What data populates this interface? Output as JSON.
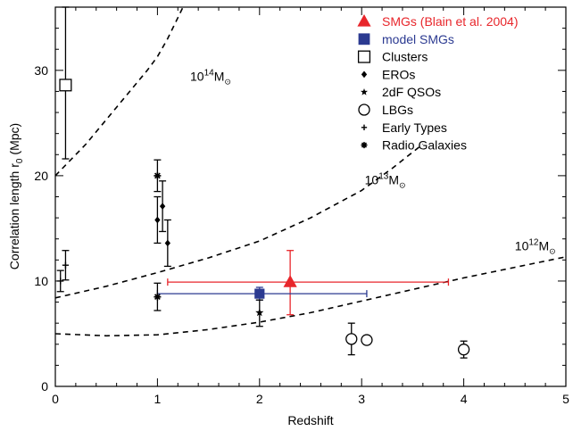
{
  "chart_data": {
    "type": "scatter",
    "xlabel": "Redshift",
    "ylabel": "Correlation length r",
    "ylabel_sub": "0",
    "ylabel_unit": "(Mpc)",
    "xlim": [
      0,
      5
    ],
    "ylim": [
      0,
      36
    ],
    "x_ticks": [
      0,
      1,
      2,
      3,
      4,
      5
    ],
    "y_ticks": [
      0,
      10,
      20,
      30
    ],
    "x_tick_labels": [
      "0",
      "1",
      "2",
      "3",
      "4",
      "5"
    ],
    "y_tick_labels": [
      "0",
      "10",
      "20",
      "30"
    ],
    "grid": false,
    "legend_position": "top-right",
    "legend": [
      {
        "label": "SMGs (Blain et al. 2004)",
        "marker": "triangle",
        "color": "#e8262b"
      },
      {
        "label": "model SMGs",
        "marker": "square",
        "color": "#2b3a91"
      },
      {
        "label": "Clusters",
        "marker": "open-square",
        "color": "#000000"
      },
      {
        "label": "EROs",
        "marker": "diamond",
        "color": "#000000"
      },
      {
        "label": "2dF QSOs",
        "marker": "star",
        "color": "#000000"
      },
      {
        "label": "LBGs",
        "marker": "circle",
        "color": "#000000"
      },
      {
        "label": "Early Types",
        "marker": "plus",
        "color": "#000000"
      },
      {
        "label": "Radio Galaxies",
        "marker": "asterisk",
        "color": "#000000"
      }
    ],
    "mass_curves": [
      {
        "label": "10",
        "sup": "14",
        "unit": "M",
        "sub": "⊙",
        "points": [
          [
            0.0,
            20.0
          ],
          [
            0.3,
            23.0
          ],
          [
            0.6,
            26.5
          ],
          [
            0.9,
            30.0
          ],
          [
            1.0,
            31.3
          ],
          [
            1.1,
            33.0
          ],
          [
            1.2,
            35.0
          ],
          [
            1.25,
            36.0
          ]
        ]
      },
      {
        "label": "10",
        "sup": "13",
        "unit": "M",
        "sub": "⊙",
        "points": [
          [
            0.0,
            8.4
          ],
          [
            0.5,
            9.5
          ],
          [
            1.0,
            10.8
          ],
          [
            1.5,
            12.2
          ],
          [
            2.0,
            13.8
          ],
          [
            2.5,
            16.0
          ],
          [
            3.0,
            18.6
          ],
          [
            3.3,
            20.7
          ],
          [
            3.6,
            23.0
          ]
        ]
      },
      {
        "label": "10",
        "sup": "12",
        "unit": "M",
        "sub": "⊙",
        "points": [
          [
            0.0,
            5.0
          ],
          [
            0.5,
            4.8
          ],
          [
            1.0,
            4.9
          ],
          [
            1.5,
            5.4
          ],
          [
            2.0,
            6.1
          ],
          [
            2.5,
            7.0
          ],
          [
            3.0,
            8.1
          ],
          [
            3.5,
            9.2
          ],
          [
            4.0,
            10.3
          ],
          [
            4.5,
            11.3
          ],
          [
            5.0,
            12.3
          ]
        ]
      }
    ],
    "series": [
      {
        "name": "SMGs (Blain et al. 2004)",
        "marker": "triangle",
        "color": "#e8262b",
        "points": [
          {
            "x": 2.3,
            "y": 9.9,
            "xerr": [
              1.2,
              1.55
            ],
            "yerr": [
              3.1,
              3.0
            ]
          }
        ]
      },
      {
        "name": "model SMGs",
        "marker": "square",
        "color": "#2b3a91",
        "points": [
          {
            "x": 2.0,
            "y": 8.8,
            "xerr": [
              1.0,
              1.05
            ],
            "yerr": [
              0.6,
              0.6
            ]
          }
        ]
      },
      {
        "name": "Clusters",
        "marker": "open-square",
        "color": "#000000",
        "points": [
          {
            "x": 0.1,
            "y": 28.6,
            "yerr": [
              7.0,
              7.4
            ]
          }
        ]
      },
      {
        "name": "EROs",
        "marker": "diamond",
        "color": "#000000",
        "points": [
          {
            "x": 1.0,
            "y": 15.8,
            "yerr": [
              2.2,
              2.2
            ]
          },
          {
            "x": 1.05,
            "y": 17.1,
            "yerr": [
              2.4,
              2.4
            ]
          },
          {
            "x": 1.1,
            "y": 13.6,
            "yerr": [
              2.2,
              2.2
            ]
          }
        ]
      },
      {
        "name": "2dF QSOs",
        "marker": "star",
        "color": "#000000",
        "points": [
          {
            "x": 2.0,
            "y": 7.0,
            "yerr": [
              1.3,
              1.2
            ]
          }
        ]
      },
      {
        "name": "LBGs",
        "marker": "circle",
        "color": "#000000",
        "points": [
          {
            "x": 2.9,
            "y": 4.5,
            "yerr": [
              1.5,
              1.5
            ]
          },
          {
            "x": 3.05,
            "y": 4.4,
            "yerr": [
              0.4,
              0.4
            ]
          },
          {
            "x": 4.0,
            "y": 3.5,
            "yerr": [
              0.8,
              0.8
            ]
          }
        ]
      },
      {
        "name": "Early Types",
        "marker": "plus",
        "color": "#000000",
        "points": [
          {
            "x": 0.05,
            "y": 10.0,
            "yerr": [
              1.0,
              1.0
            ]
          },
          {
            "x": 0.1,
            "y": 11.5,
            "yerr": [
              1.4,
              1.4
            ]
          }
        ]
      },
      {
        "name": "Radio Galaxies",
        "marker": "asterisk",
        "color": "#000000",
        "points": [
          {
            "x": 1.0,
            "y": 20.0,
            "yerr": [
              1.5,
              1.5
            ]
          },
          {
            "x": 1.0,
            "y": 8.5,
            "yerr": [
              1.3,
              1.3
            ]
          }
        ]
      }
    ]
  }
}
